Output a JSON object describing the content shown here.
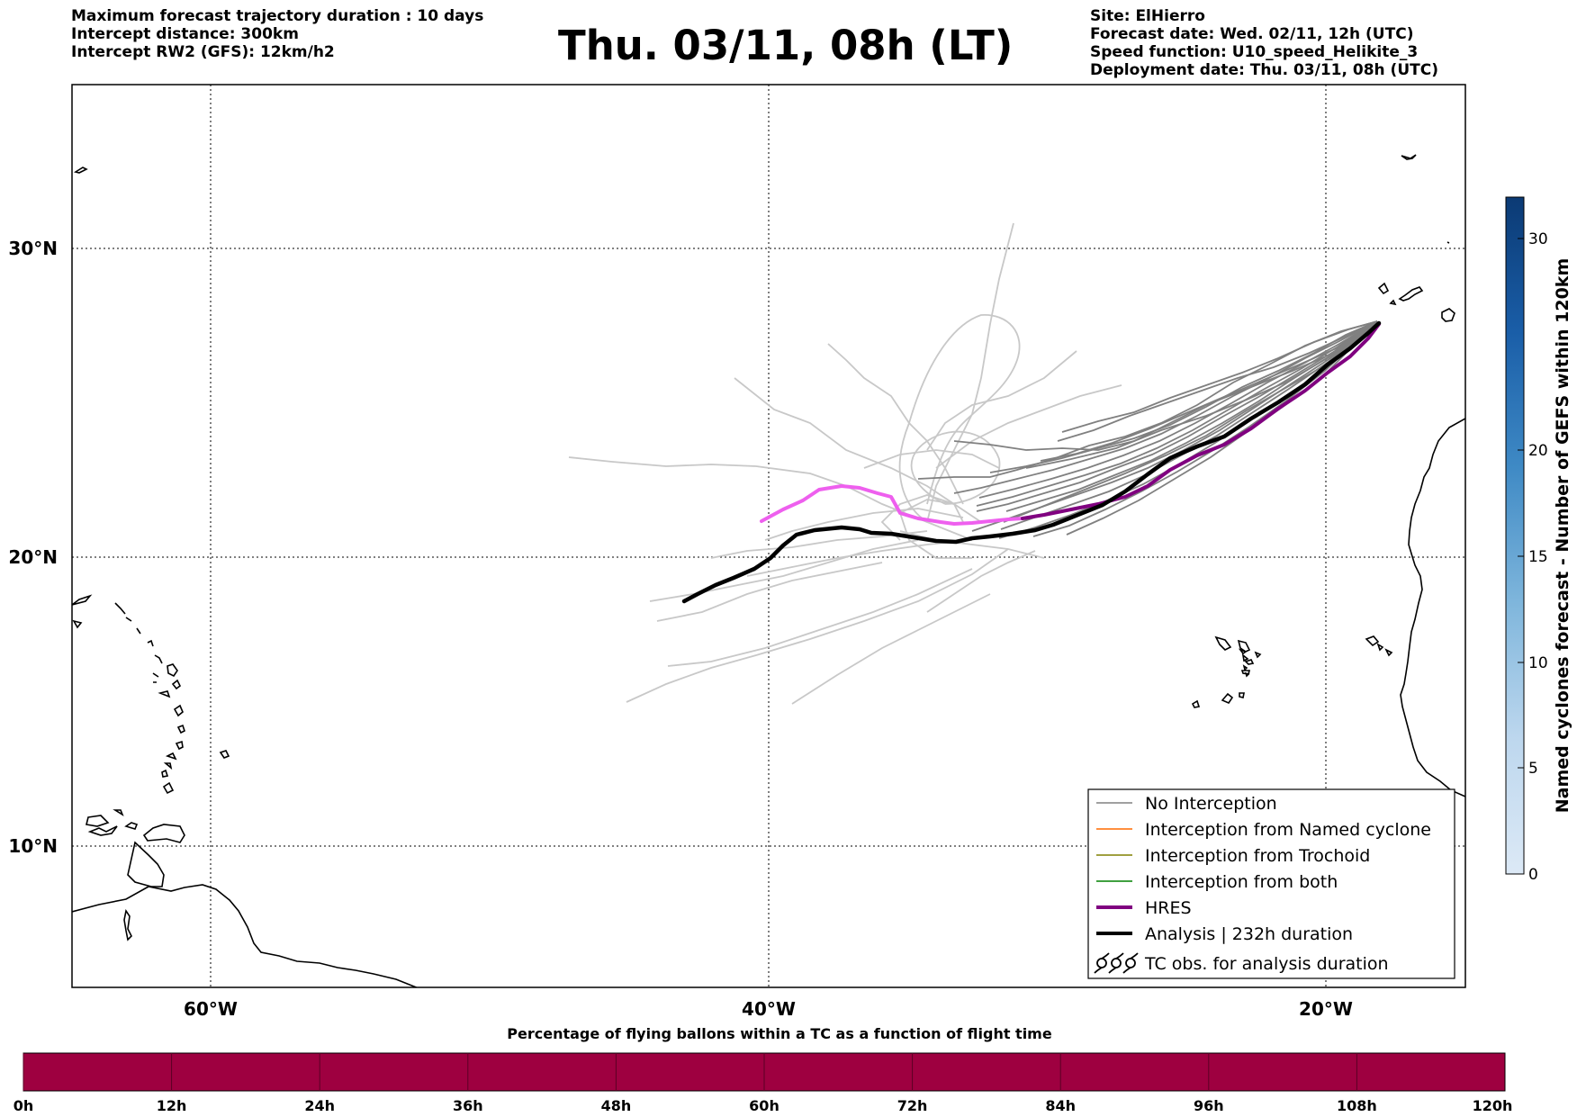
{
  "header": {
    "left": [
      "Maximum forecast trajectory duration : 10 days",
      "Intercept distance: 300km",
      "Intercept RW2 (GFS):  12km/h2"
    ],
    "title": "Thu. 03/11, 08h (LT)",
    "right": [
      "Site: ElHierro",
      "Forecast date: Wed. 02/11, 12h (UTC)",
      "Speed function: U10_speed_Helikite_3",
      "Deployment date: Thu. 03/11, 08h (UTC)"
    ]
  },
  "map": {
    "lon_labels": [
      "60°W",
      "40°W",
      "20°W"
    ],
    "lat_labels": [
      "30°N",
      "20°N",
      "10°N"
    ]
  },
  "colors": {
    "no_interception": "#808080",
    "ensemble_faint": "#c8c8c8",
    "named_cyclone": "#ff6a00",
    "trochoid": "#808000",
    "both": "#008000",
    "hres": "#800080",
    "hres_light": "#ee5fee",
    "analysis": "#000000",
    "bottom_bar": "#9e0040"
  },
  "legend": [
    {
      "label": "No Interception",
      "style": "thin-gray"
    },
    {
      "label": "Interception from Named cyclone",
      "style": "thin-orange"
    },
    {
      "label": "Interception from Trochoid",
      "style": "thin-olive"
    },
    {
      "label": "Interception from both",
      "style": "thin-green"
    },
    {
      "label": "HRES",
      "style": "thick-purple"
    },
    {
      "label": "Analysis | 232h duration",
      "style": "thick-black"
    },
    {
      "label": "TC obs. for analysis duration",
      "style": "cyclone-symbols"
    }
  ],
  "colorbar": {
    "label": "Named cyclones forecast - Number of GEFS within 120km",
    "ticks": [
      "0",
      "5",
      "10",
      "15",
      "20",
      "30"
    ]
  },
  "bottom_bar": {
    "title": "Percentage of flying ballons within a TC as a function of flight time",
    "ticks": [
      "0h",
      "12h",
      "24h",
      "36h",
      "48h",
      "60h",
      "72h",
      "84h",
      "96h",
      "108h",
      "120h"
    ]
  }
}
